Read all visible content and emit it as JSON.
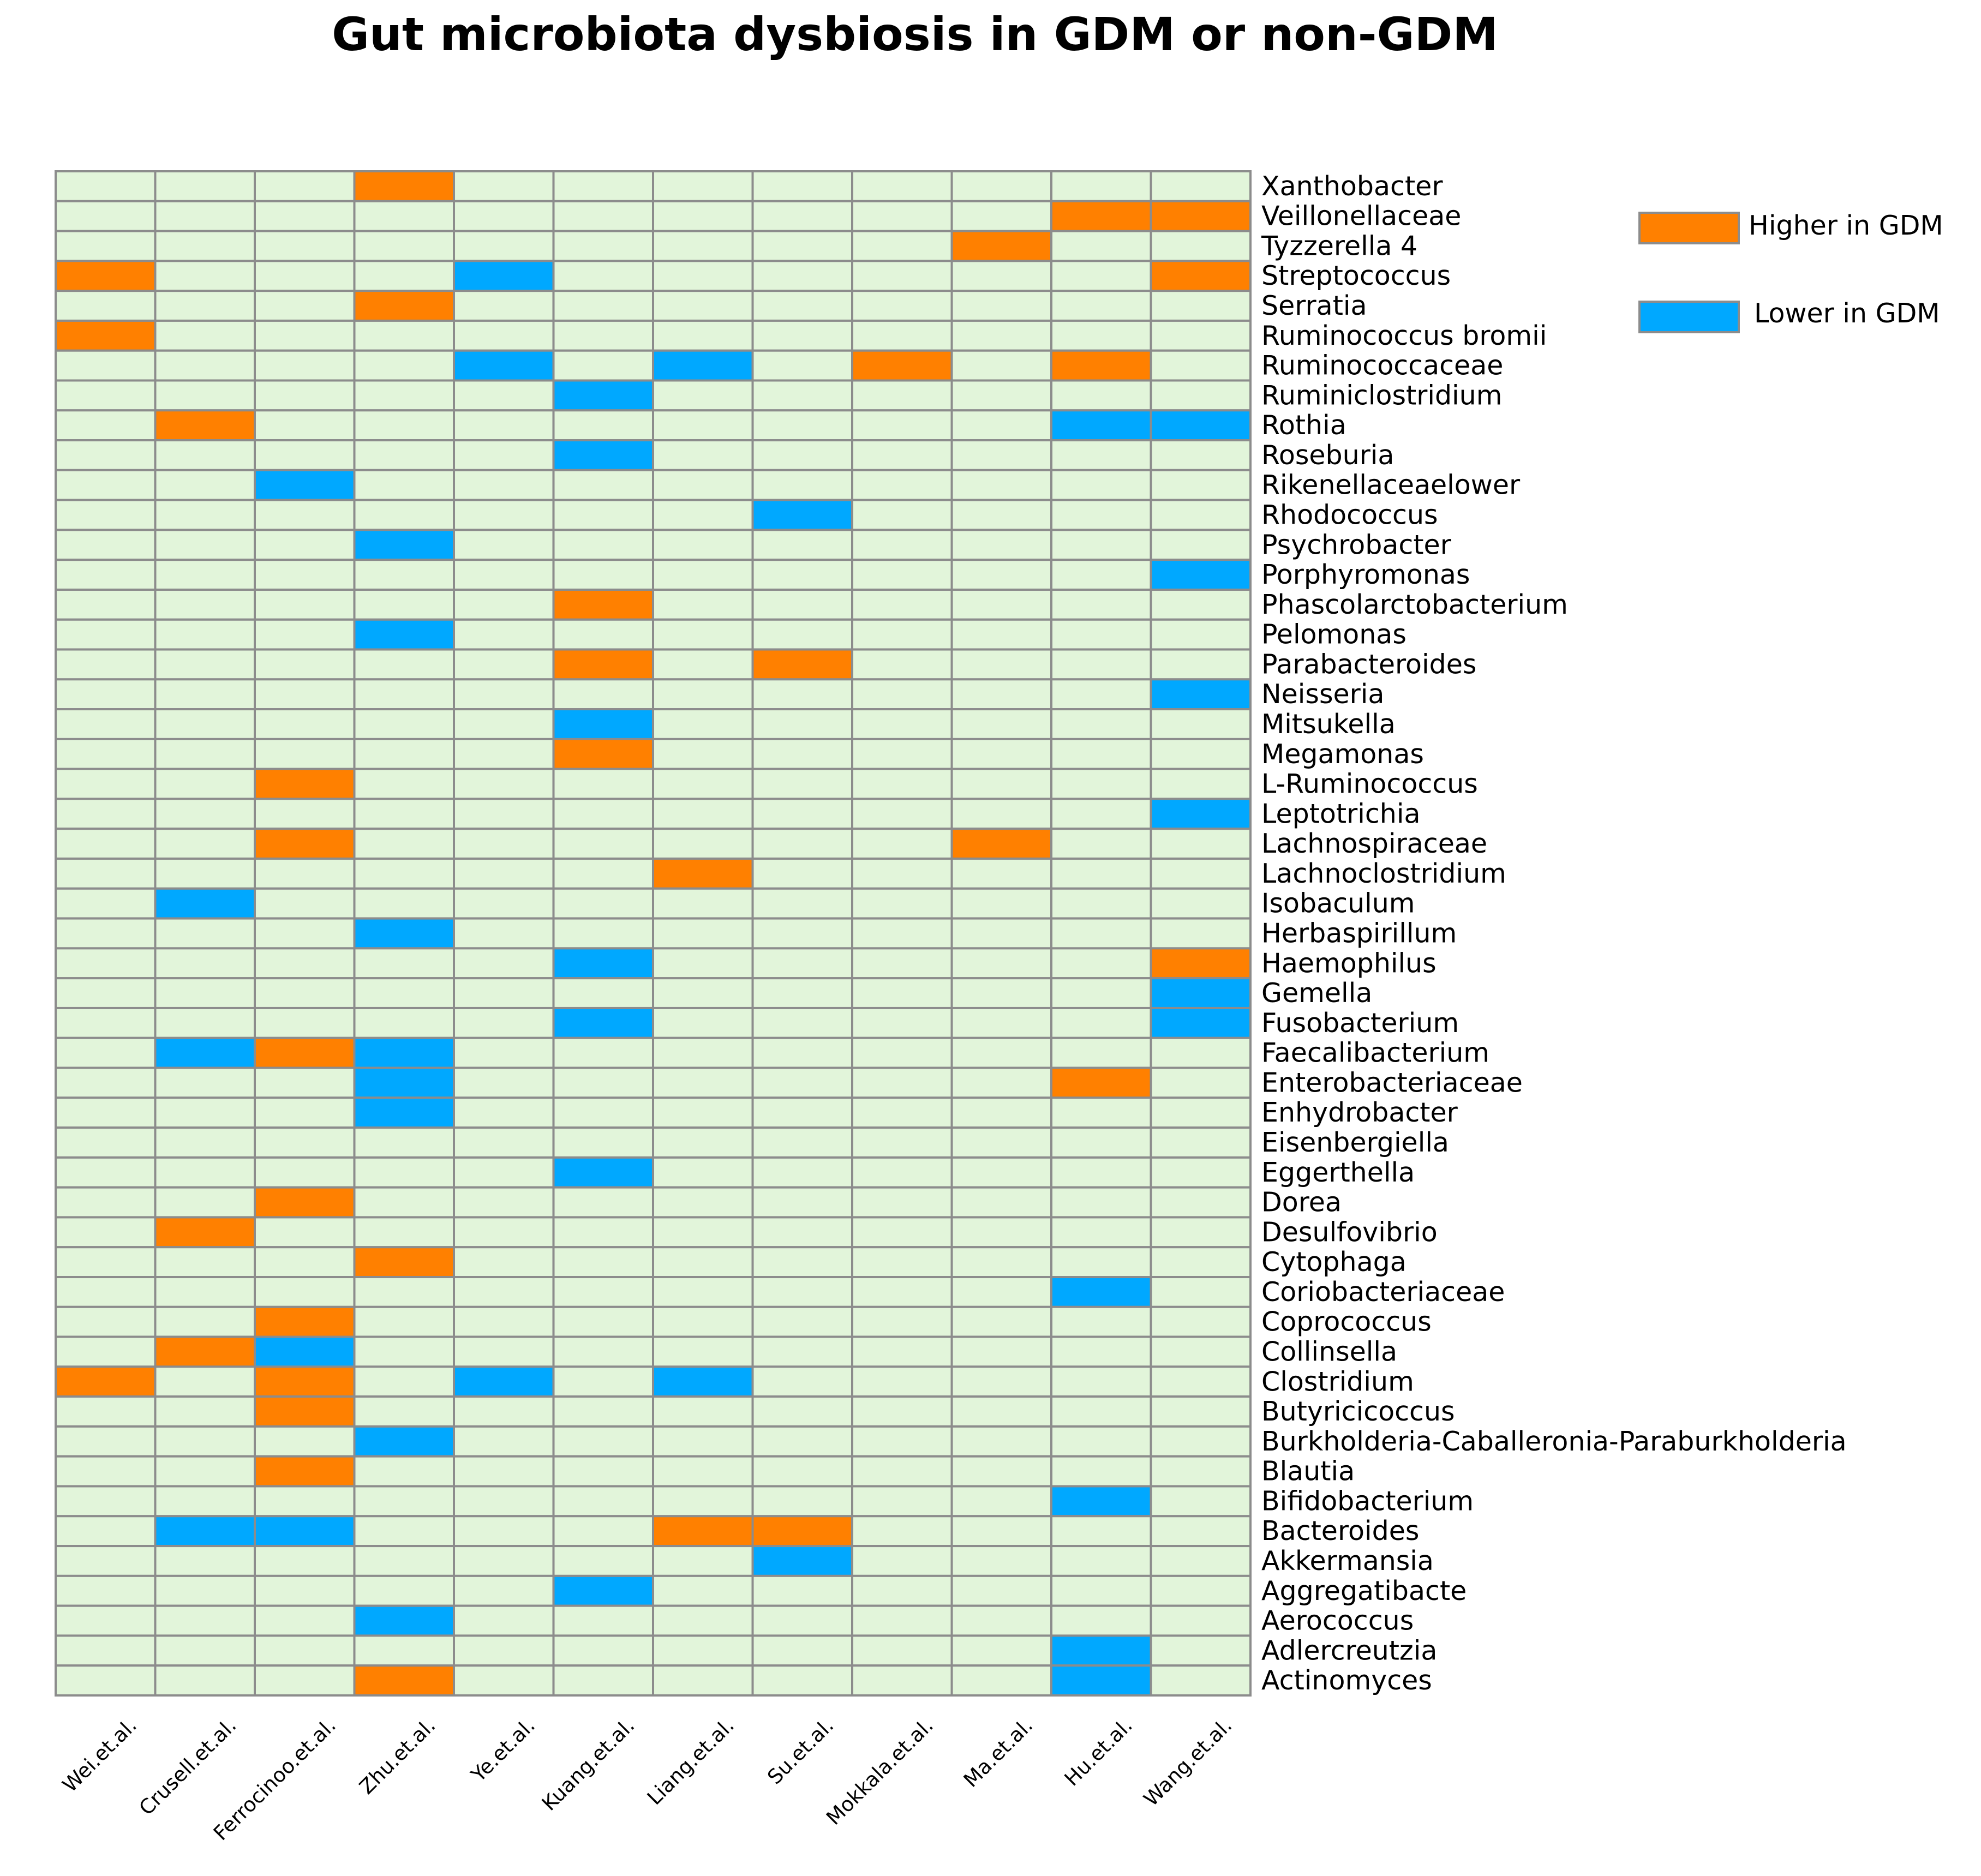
{
  "chart_data": {
    "type": "heatmap",
    "title": "Gut microbiota dysbiosis in GDM or non-GDM",
    "columns": [
      "Wei.et.al.",
      "Crusell.et.al.",
      "Ferrocinoo.et.al.",
      "Zhu.et.al.",
      "Ye.et.al.",
      "Kuang.et.al.",
      "Liang.et.al.",
      "Su.et.al.",
      "Mokkala.et.al.",
      "Ma.et.al.",
      "Hu.et.al.",
      "Wang.et.al."
    ],
    "rows": [
      "Xanthobacter",
      "Veillonellaceae",
      "Tyzzerella 4",
      "Streptococcus",
      "Serratia",
      "Ruminococcus bromii",
      "Ruminococcaceae",
      "Ruminiclostridium",
      "Rothia",
      "Roseburia",
      "Rikenellaceaelower",
      "Rhodococcus",
      "Psychrobacter",
      "Porphyromonas",
      "Phascolarctobacterium",
      "Pelomonas",
      "Parabacteroides",
      "Neisseria",
      "Mitsukella",
      "Megamonas",
      "L-Ruminococcus",
      "Leptotrichia",
      "Lachnospiraceae",
      "Lachnoclostridium",
      "Isobaculum",
      "Herbaspirillum",
      "Haemophilus",
      "Gemella",
      "Fusobacterium",
      "Faecalibacterium",
      "Enterobacteriaceae",
      "Enhydrobacter",
      "Eisenbergiella",
      "Eggerthella",
      "Dorea",
      "Desulfovibrio",
      "Cytophaga",
      "Coriobacteriaceae",
      "Coprococcus",
      "Collinsella",
      "Clostridium",
      "Butyricicoccus",
      "Burkholderia-Caballeronia-Paraburkholderia",
      "Blautia",
      "Bifidobacterium",
      "Bacteroides",
      "Akkermansia",
      "Aggregatibacte",
      "Aerococcus",
      "Adlercreutzia",
      "Actinomyces"
    ],
    "values": [
      [
        0,
        0,
        0,
        1,
        0,
        0,
        0,
        0,
        0,
        0,
        0,
        0
      ],
      [
        0,
        0,
        0,
        0,
        0,
        0,
        0,
        0,
        0,
        0,
        1,
        1
      ],
      [
        0,
        0,
        0,
        0,
        0,
        0,
        0,
        0,
        0,
        1,
        0,
        0
      ],
      [
        1,
        0,
        0,
        0,
        -1,
        0,
        0,
        0,
        0,
        0,
        0,
        1
      ],
      [
        0,
        0,
        0,
        1,
        0,
        0,
        0,
        0,
        0,
        0,
        0,
        0
      ],
      [
        1,
        0,
        0,
        0,
        0,
        0,
        0,
        0,
        0,
        0,
        0,
        0
      ],
      [
        0,
        0,
        0,
        0,
        -1,
        0,
        -1,
        0,
        1,
        0,
        1,
        0
      ],
      [
        0,
        0,
        0,
        0,
        0,
        -1,
        0,
        0,
        0,
        0,
        0,
        0
      ],
      [
        0,
        1,
        0,
        0,
        0,
        0,
        0,
        0,
        0,
        0,
        -1,
        -1
      ],
      [
        0,
        0,
        0,
        0,
        0,
        -1,
        0,
        0,
        0,
        0,
        0,
        0
      ],
      [
        0,
        0,
        -1,
        0,
        0,
        0,
        0,
        0,
        0,
        0,
        0,
        0
      ],
      [
        0,
        0,
        0,
        0,
        0,
        0,
        0,
        -1,
        0,
        0,
        0,
        0
      ],
      [
        0,
        0,
        0,
        -1,
        0,
        0,
        0,
        0,
        0,
        0,
        0,
        0
      ],
      [
        0,
        0,
        0,
        0,
        0,
        0,
        0,
        0,
        0,
        0,
        0,
        -1
      ],
      [
        0,
        0,
        0,
        0,
        0,
        1,
        0,
        0,
        0,
        0,
        0,
        0
      ],
      [
        0,
        0,
        0,
        -1,
        0,
        0,
        0,
        0,
        0,
        0,
        0,
        0
      ],
      [
        0,
        0,
        0,
        0,
        0,
        1,
        0,
        1,
        0,
        0,
        0,
        0
      ],
      [
        0,
        0,
        0,
        0,
        0,
        0,
        0,
        0,
        0,
        0,
        0,
        -1
      ],
      [
        0,
        0,
        0,
        0,
        0,
        -1,
        0,
        0,
        0,
        0,
        0,
        0
      ],
      [
        0,
        0,
        0,
        0,
        0,
        1,
        0,
        0,
        0,
        0,
        0,
        0
      ],
      [
        0,
        0,
        1,
        0,
        0,
        0,
        0,
        0,
        0,
        0,
        0,
        0
      ],
      [
        0,
        0,
        0,
        0,
        0,
        0,
        0,
        0,
        0,
        0,
        0,
        -1
      ],
      [
        0,
        0,
        1,
        0,
        0,
        0,
        0,
        0,
        0,
        1,
        0,
        0
      ],
      [
        0,
        0,
        0,
        0,
        0,
        0,
        1,
        0,
        0,
        0,
        0,
        0
      ],
      [
        0,
        -1,
        0,
        0,
        0,
        0,
        0,
        0,
        0,
        0,
        0,
        0
      ],
      [
        0,
        0,
        0,
        -1,
        0,
        0,
        0,
        0,
        0,
        0,
        0,
        0
      ],
      [
        0,
        0,
        0,
        0,
        0,
        -1,
        0,
        0,
        0,
        0,
        0,
        1
      ],
      [
        0,
        0,
        0,
        0,
        0,
        0,
        0,
        0,
        0,
        0,
        0,
        -1
      ],
      [
        0,
        0,
        0,
        0,
        0,
        -1,
        0,
        0,
        0,
        0,
        0,
        -1
      ],
      [
        0,
        -1,
        1,
        -1,
        0,
        0,
        0,
        0,
        0,
        0,
        0,
        0
      ],
      [
        0,
        0,
        0,
        -1,
        0,
        0,
        0,
        0,
        0,
        0,
        1,
        0
      ],
      [
        0,
        0,
        0,
        -1,
        0,
        0,
        0,
        0,
        0,
        0,
        0,
        0
      ],
      [
        0,
        0,
        0,
        0,
        0,
        0,
        0,
        0,
        0,
        0,
        0,
        0
      ],
      [
        0,
        0,
        0,
        0,
        0,
        -1,
        0,
        0,
        0,
        0,
        0,
        0
      ],
      [
        0,
        0,
        1,
        0,
        0,
        0,
        0,
        0,
        0,
        0,
        0,
        0
      ],
      [
        0,
        1,
        0,
        0,
        0,
        0,
        0,
        0,
        0,
        0,
        0,
        0
      ],
      [
        0,
        0,
        0,
        1,
        0,
        0,
        0,
        0,
        0,
        0,
        0,
        0
      ],
      [
        0,
        0,
        0,
        0,
        0,
        0,
        0,
        0,
        0,
        0,
        -1,
        0
      ],
      [
        0,
        0,
        1,
        0,
        0,
        0,
        0,
        0,
        0,
        0,
        0,
        0
      ],
      [
        0,
        1,
        -1,
        0,
        0,
        0,
        0,
        0,
        0,
        0,
        0,
        0
      ],
      [
        1,
        0,
        1,
        0,
        -1,
        0,
        -1,
        0,
        0,
        0,
        0,
        0
      ],
      [
        0,
        0,
        1,
        0,
        0,
        0,
        0,
        0,
        0,
        0,
        0,
        0
      ],
      [
        0,
        0,
        0,
        -1,
        0,
        0,
        0,
        0,
        0,
        0,
        0,
        0
      ],
      [
        0,
        0,
        1,
        0,
        0,
        0,
        0,
        0,
        0,
        0,
        0,
        0
      ],
      [
        0,
        0,
        0,
        0,
        0,
        0,
        0,
        0,
        0,
        0,
        -1,
        0
      ],
      [
        0,
        -1,
        -1,
        0,
        0,
        0,
        1,
        1,
        0,
        0,
        0,
        0
      ],
      [
        0,
        0,
        0,
        0,
        0,
        0,
        0,
        -1,
        0,
        0,
        0,
        0
      ],
      [
        0,
        0,
        0,
        0,
        0,
        -1,
        0,
        0,
        0,
        0,
        0,
        0
      ],
      [
        0,
        0,
        0,
        -1,
        0,
        0,
        0,
        0,
        0,
        0,
        0,
        0
      ],
      [
        0,
        0,
        0,
        0,
        0,
        0,
        0,
        0,
        0,
        0,
        -1,
        0
      ],
      [
        0,
        0,
        0,
        1,
        0,
        0,
        0,
        0,
        0,
        0,
        -1,
        0
      ]
    ],
    "value_meaning": {
      "1": "Higher in GDM",
      "-1": "Lower in GDM",
      "0": "no change"
    },
    "legend": [
      {
        "label": "Higher in GDM",
        "color": "#ff8000"
      },
      {
        "label": "Lower in GDM",
        "color": "#00a8ff"
      }
    ],
    "colors": {
      "higher": "#ff8000",
      "lower": "#00a8ff",
      "neutral": "#e2f5da",
      "grid": "#8c8c8c"
    },
    "legend_position": "top-right"
  }
}
